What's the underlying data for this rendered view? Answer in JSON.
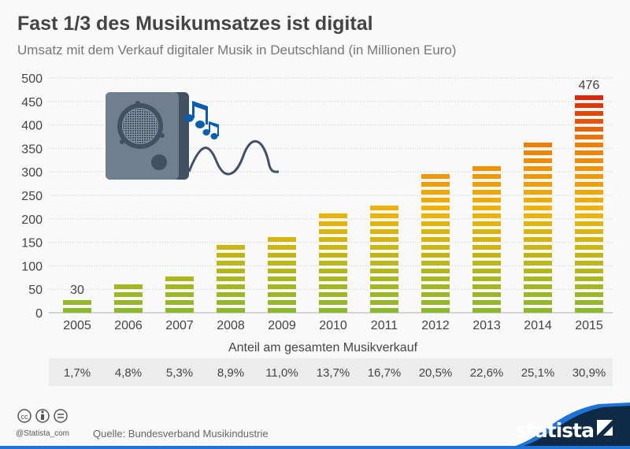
{
  "title": "Fast 1/3 des Musikumsatzes ist digital",
  "subtitle": "Umsatz mit dem Verkauf digitaler Musik in Deutschland (in Millionen Euro)",
  "chart_data": {
    "type": "bar",
    "categories": [
      "2005",
      "2006",
      "2007",
      "2008",
      "2009",
      "2010",
      "2011",
      "2012",
      "2013",
      "2014",
      "2015"
    ],
    "values": [
      30,
      75,
      91,
      143,
      176,
      210,
      243,
      294,
      327,
      376,
      476
    ],
    "data_labels": {
      "2005": "30",
      "2015": "476"
    },
    "ylim": [
      0,
      500
    ],
    "yticks": [
      "0",
      "50",
      "100",
      "150",
      "200",
      "250",
      "300",
      "350",
      "400",
      "450",
      "500"
    ],
    "grid": true,
    "colors": {
      "low": "#8cb82b",
      "mid": "#f2b300",
      "high": "#f07d00",
      "top": "#d9140d"
    },
    "table": {
      "label": "Anteil am gesamten Musikverkauf",
      "values": [
        "1,7%",
        "4,8%",
        "5,3%",
        "8,9%",
        "11,0%",
        "13,7%",
        "16,7%",
        "20,5%",
        "22,6%",
        "25,1%",
        "30,9%"
      ]
    }
  },
  "footer": {
    "handle": "@Statista_com",
    "source": "Quelle: Bundesverband Musikindustrie",
    "brand": "statista",
    "license_icons": [
      "cc-icon",
      "by-icon",
      "nd-icon"
    ]
  },
  "illustration": "speaker-with-music-notes"
}
